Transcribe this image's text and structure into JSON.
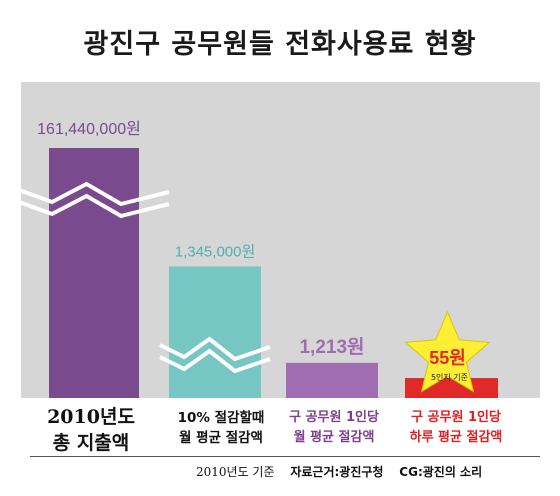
{
  "title": "광진구 공무원들 전화사용료 현황",
  "chart_data": {
    "type": "bar",
    "categories": [
      "2010년도 총 지출액",
      "10% 절감할때 월 평균 절감액",
      "구 공무원 1인당 월 평균 절감액",
      "구 공무원 1인당 하루 평균 절감액"
    ],
    "values": [
      161440000,
      1345000,
      1213,
      55
    ],
    "value_labels": [
      "161,440,000원",
      "1,345,000원",
      "1,213원",
      "55원"
    ],
    "axis_break": true,
    "colors": [
      "#7a4a8f",
      "#76c6c4",
      "#a06cb2",
      "#e02a2a"
    ],
    "star_color": "#ffee33",
    "star_note": "5인지 기준",
    "category_lines": [
      [
        "2010년도",
        "총 지출액"
      ],
      [
        "10% 절감할때",
        "월 평균 절감액"
      ],
      [
        "구 공무원 1인당",
        "월 평균 절감액"
      ],
      [
        "구 공무원 1인당",
        "하루 평균 절감액"
      ]
    ],
    "footer": {
      "basis": "2010년도 기준",
      "source": "자료근거:광진구청",
      "credit": "CG:광진의 소리"
    }
  }
}
